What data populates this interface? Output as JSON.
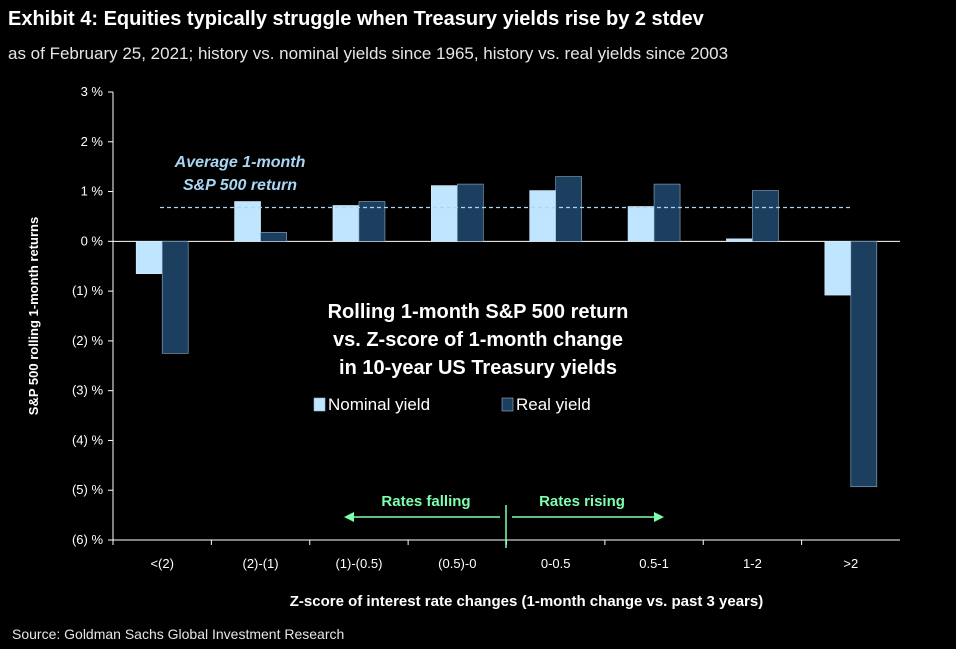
{
  "header": {
    "title": "Exhibit 4: Equities typically struggle when Treasury yields rise by 2 stdev",
    "subtitle": "as of February 25, 2021; history vs. nominal yields since 1965, history vs. real yields since 2003"
  },
  "footer": {
    "source": "Source: Goldman Sachs Global Investment Research"
  },
  "chart_data": {
    "type": "bar",
    "title": "",
    "xlabel": "Z-score of interest rate changes (1-month change vs. past 3 years)",
    "ylabel": "S&P 500 rolling 1-month returns",
    "ylim": [
      -6,
      3
    ],
    "yticks": [
      3,
      2,
      1,
      0,
      -1,
      -2,
      -3,
      -4,
      -5,
      -6
    ],
    "ytick_labels": [
      "3 %",
      "2 %",
      "1 %",
      "0 %",
      "(1) %",
      "(2) %",
      "(3) %",
      "(4) %",
      "(5) %",
      "(6) %"
    ],
    "categories": [
      "<(2)",
      "(2)-(1)",
      "(1)-(0.5)",
      "(0.5)-0",
      "0-0.5",
      "0.5-1",
      "1-2",
      ">2"
    ],
    "series": [
      {
        "name": "Nominal yield",
        "color": "#bfe5ff",
        "values": [
          -0.65,
          0.8,
          0.72,
          1.12,
          1.02,
          0.7,
          0.05,
          -1.08
        ]
      },
      {
        "name": "Real yield",
        "color": "#1d3f5f",
        "values": [
          -2.25,
          0.18,
          0.8,
          1.15,
          1.3,
          1.15,
          1.02,
          -4.93
        ]
      }
    ],
    "reference_line": {
      "value": 0.68,
      "label_lines": [
        "Average 1-month",
        "S&P 500 return"
      ],
      "color": "#a9d6f5"
    },
    "inset_text_lines": [
      "Rolling 1-month S&P 500 return",
      "vs. Z-score of 1-month change",
      "in 10-year US Treasury yields"
    ],
    "annotations": {
      "left_arrow": "Rates falling",
      "right_arrow": "Rates rising",
      "color": "#7dffb0"
    },
    "legend": "inside-center",
    "grid": false
  }
}
